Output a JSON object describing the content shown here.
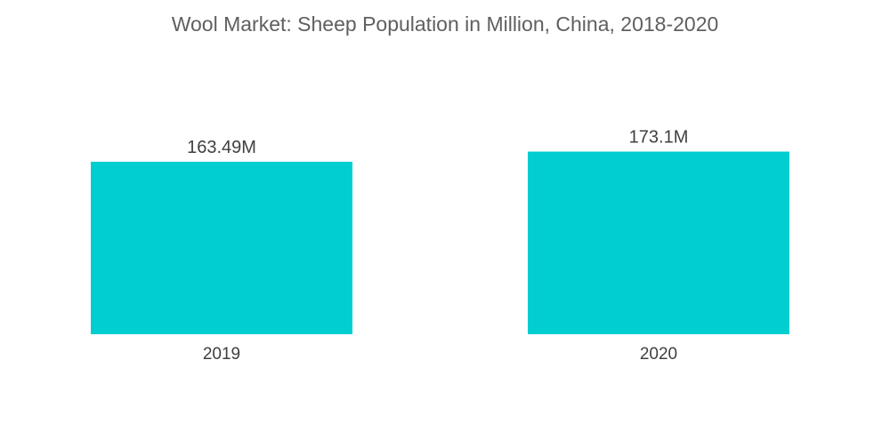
{
  "chart_data": {
    "type": "bar",
    "title": "Wool Market: Sheep Population in Million, China, 2018-2020",
    "categories": [
      "2019",
      "2020"
    ],
    "values": [
      163.49,
      173.1
    ],
    "data_labels": [
      "163.49M",
      "173.1M"
    ],
    "xlabel": "",
    "ylabel": "",
    "ylim": [
      0,
      180
    ],
    "grid": false,
    "legend": "none",
    "bar_color": "#00ced1"
  }
}
